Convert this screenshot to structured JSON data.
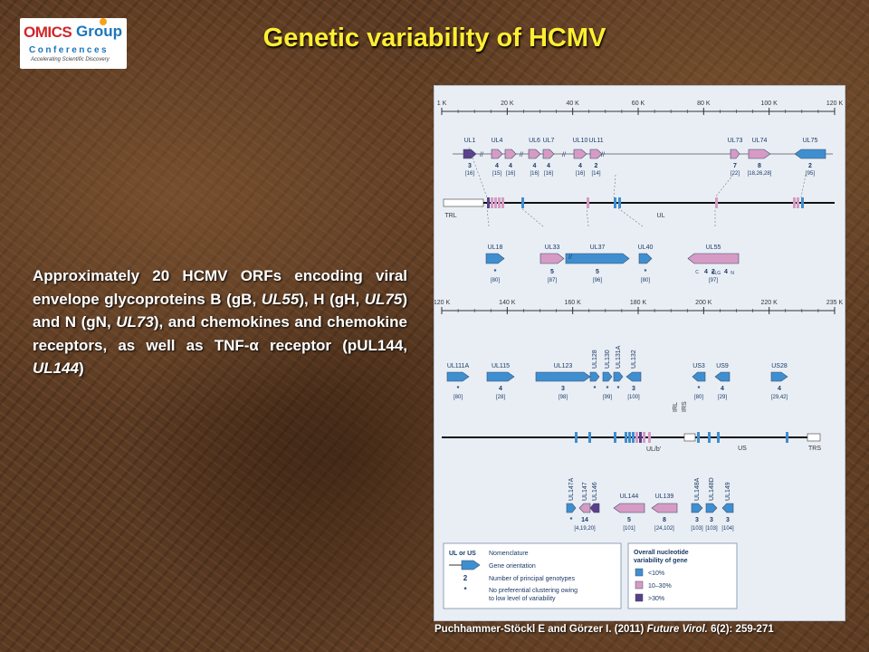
{
  "logo": {
    "brand_a": "OMICS",
    "brand_b": "Group",
    "sub": "Conferences",
    "tagline": "Accelerating Scientific Discovery"
  },
  "title": "Genetic variability of HCMV",
  "body": {
    "p1": "Approximately 20 HCMV ORFs encoding viral envelope glycoproteins B (gB, ",
    "e1": "UL55",
    "p2": "), H (gH, ",
    "e2": "UL75",
    "p3": ") and N (gN, ",
    "e3": "UL73",
    "p4": "), and chemokines and chemokine receptors, as well as TNF-α receptor (pUL144, ",
    "e4": "UL144",
    "p5": ")"
  },
  "citation": {
    "authors": "Puchhammer-Stöckl E and Görzer I. (2011) ",
    "journal": "Future Virol.",
    "ref": " 6(2): 259-271"
  },
  "colors": {
    "blue": "#3f8fd0",
    "pink": "#d69bc4",
    "purple": "#5a3f8a"
  },
  "figure": {
    "top_axis_ticks": [
      "1 K",
      "20 K",
      "40 K",
      "60 K",
      "80 K",
      "100 K",
      "120 K"
    ],
    "bottom_axis_ticks": [
      "120 K",
      "140 K",
      "160 K",
      "180 K",
      "200 K",
      "220 K",
      "235 K"
    ],
    "top_genes": [
      {
        "name": "UL1",
        "count": "3",
        "refs": "[16]",
        "color": "purple"
      },
      {
        "name": "UL4",
        "count": "4",
        "refs": "[15]",
        "color": "pink"
      },
      {
        "name": "",
        "count": "4",
        "refs": "[16]",
        "color": "pink"
      },
      {
        "name": "UL6",
        "count": "4",
        "refs": "[16]",
        "color": "pink"
      },
      {
        "name": "UL7",
        "count": "4",
        "refs": "[16]",
        "color": "pink"
      },
      {
        "name": "UL10",
        "count": "4",
        "refs": "[16]",
        "color": "pink"
      },
      {
        "name": "UL11",
        "count": "2",
        "refs": "[14]",
        "color": "pink"
      },
      {
        "name": "UL73",
        "count": "7",
        "refs": "[22]",
        "color": "pink"
      },
      {
        "name": "UL74",
        "count": "8",
        "refs": "[18,26,28]",
        "color": "pink"
      },
      {
        "name": "UL75",
        "count": "2",
        "refs": "[95]",
        "color": "blue"
      }
    ],
    "middle_top_genes": [
      {
        "name": "UL18",
        "count": "*",
        "refs": "[80]",
        "color": "blue"
      },
      {
        "name": "UL33",
        "count": "5",
        "refs": "[87]",
        "color": "pink"
      },
      {
        "name": "UL37",
        "count": "5",
        "refs": "[96]",
        "color": "blue"
      },
      {
        "name": "UL40",
        "count": "*",
        "refs": "[80]",
        "color": "blue"
      },
      {
        "name": "UL55",
        "count": "2",
        "refs": "[97]",
        "color": "pink"
      }
    ],
    "ul55_extra": {
      "a_sub": "C",
      "b": "4",
      "b_sub": "CLG",
      "c": "4",
      "c_sub": "N"
    },
    "genome_labels": {
      "trl": "TRL",
      "ul": "UL",
      "ul_b": "UL/b'",
      "irl": "IRL",
      "irs": "IRS",
      "us": "US",
      "trs": "TRS"
    },
    "lower_genes": [
      {
        "name": "UL111A",
        "count": "*",
        "refs": "[80]",
        "color": "blue"
      },
      {
        "name": "UL115",
        "count": "4",
        "refs": "[28]",
        "color": "blue"
      },
      {
        "name": "UL123",
        "count": "3",
        "refs": "[98]",
        "color": "blue"
      },
      {
        "name": "UL128",
        "count": "*",
        "refs": "",
        "color": "blue"
      },
      {
        "name": "UL130",
        "count": "*",
        "refs": "[99]",
        "color": "blue"
      },
      {
        "name": "UL131A",
        "count": "*",
        "refs": "",
        "color": "blue"
      },
      {
        "name": "UL132",
        "count": "3",
        "refs": "[100]",
        "color": "blue"
      },
      {
        "name": "US3",
        "count": "*",
        "refs": "[80]",
        "color": "blue"
      },
      {
        "name": "US9",
        "count": "4",
        "refs": "[29]",
        "color": "blue"
      },
      {
        "name": "US28",
        "count": "4",
        "refs": "[29,42]",
        "color": "blue"
      }
    ],
    "bottom_genes": [
      {
        "name": "UL147A",
        "count": "*",
        "refs": "",
        "color": "blue"
      },
      {
        "name": "UL147",
        "count": "14",
        "refs": "[4,19,20]",
        "color": "pink"
      },
      {
        "name": "UL146",
        "count": "",
        "refs": "",
        "color": "purple"
      },
      {
        "name": "UL144",
        "count": "5",
        "refs": "[101]",
        "color": "pink"
      },
      {
        "name": "UL139",
        "count": "8",
        "refs": "[24,102]",
        "color": "pink"
      },
      {
        "name": "UL148A",
        "count": "3",
        "refs": "[103]",
        "color": "blue"
      },
      {
        "name": "UL148D",
        "count": "3",
        "refs": "[103]",
        "color": "blue"
      },
      {
        "name": "UL149",
        "count": "3",
        "refs": "[104]",
        "color": "blue"
      }
    ],
    "legend_left": {
      "item1": "UL or US",
      "item1_desc": "Nomenclature",
      "item2_desc": "Gene orientation",
      "item3": "2",
      "item3_desc": "Number of principal genotypes",
      "item4": "*",
      "item4_desc_1": "No preferential clustering owing",
      "item4_desc_2": "to low level of variability"
    },
    "legend_right": {
      "title_1": "Overall nucleotide",
      "title_2": "variability of gene",
      "low": "<10%",
      "mid": "10–30%",
      "high": ">30%"
    }
  }
}
